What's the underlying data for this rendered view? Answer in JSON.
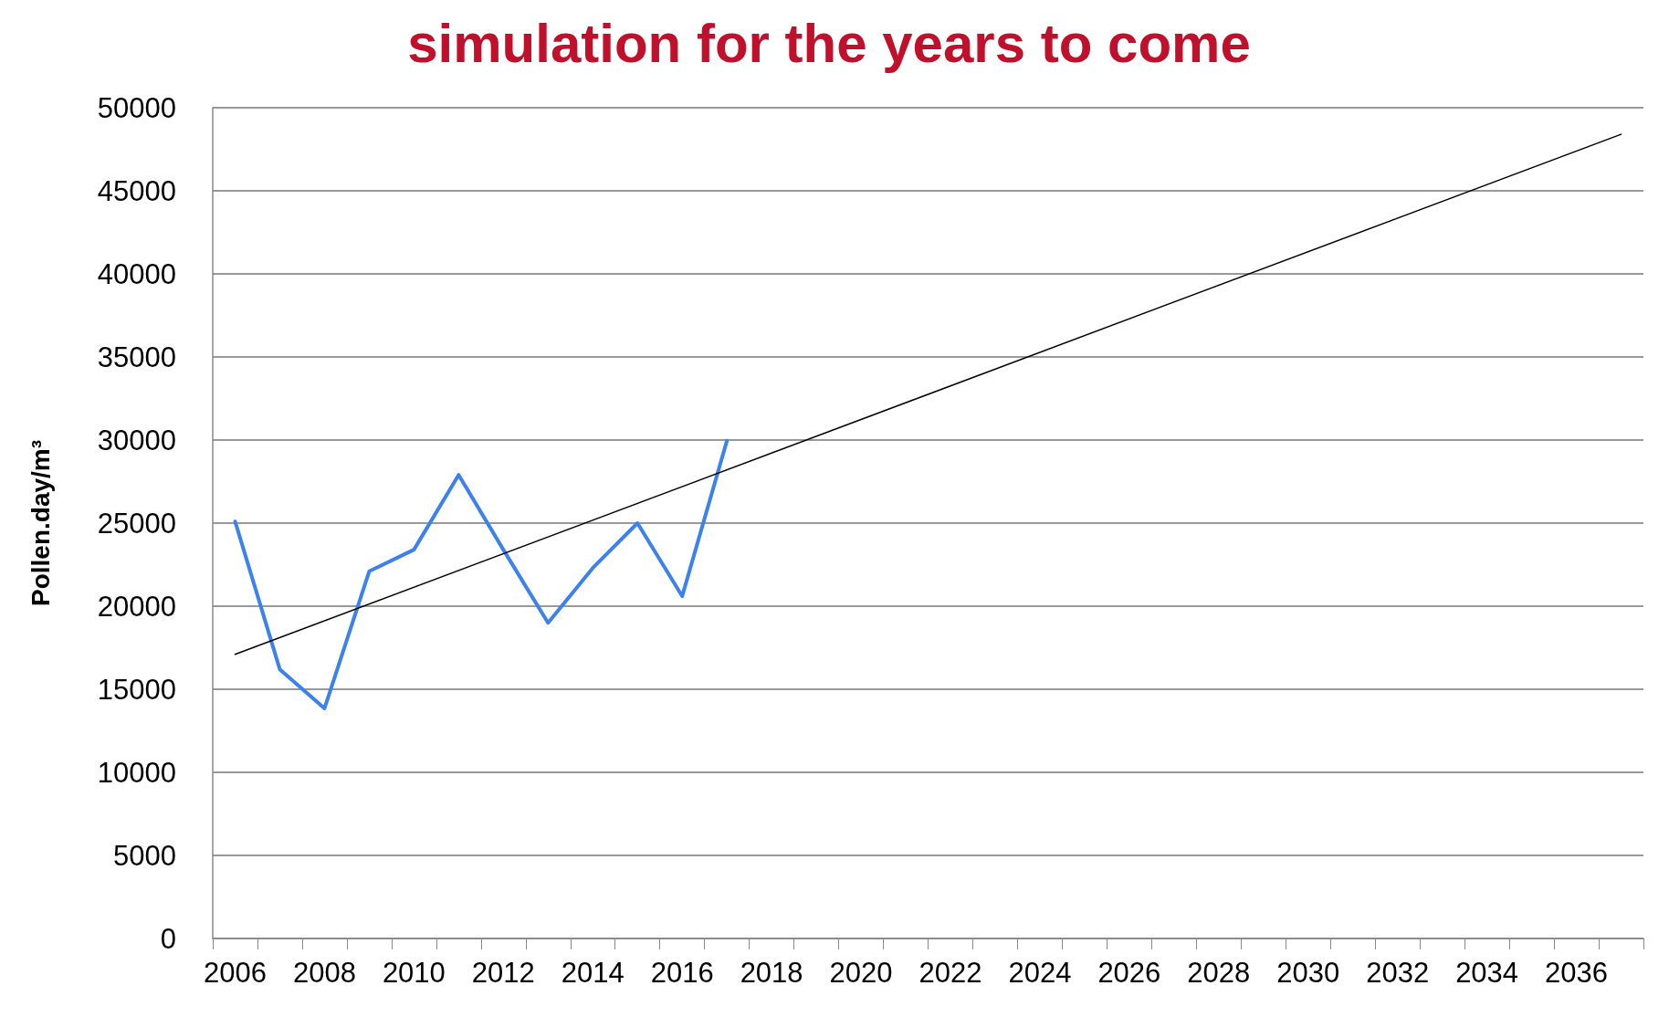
{
  "chart_data": {
    "type": "line",
    "title": "simulation for the years to come",
    "ylabel": "Pollen.day/m³",
    "categories": [
      "2006",
      null,
      "2008",
      null,
      "2010",
      null,
      "2012",
      null,
      "2014",
      null,
      "2016",
      null,
      "2018",
      null,
      "2020",
      null,
      "2022",
      null,
      "2024",
      null,
      "2026",
      null,
      "2028",
      null,
      "2030",
      null,
      "2032",
      null,
      "2034",
      null,
      "2036",
      null
    ],
    "series": [
      {
        "color": "#3b82ee",
        "values": [
          25100,
          16200,
          13850,
          22100,
          23400,
          27900,
          23400,
          19000,
          22300,
          25000,
          20600,
          29950,
          null,
          null,
          null,
          null,
          null,
          null,
          null,
          null,
          null,
          null,
          null,
          null,
          null,
          null,
          null,
          null,
          null,
          null,
          null,
          null
        ]
      },
      {
        "color": "#000000",
        "values": [
          17100,
          null,
          null,
          null,
          null,
          null,
          null,
          null,
          null,
          null,
          null,
          null,
          null,
          null,
          null,
          null,
          null,
          null,
          null,
          null,
          null,
          null,
          null,
          null,
          null,
          null,
          null,
          null,
          null,
          null,
          null,
          48400
        ]
      }
    ],
    "ylim": [
      0,
      50000
    ],
    "yticks": [
      0,
      5000,
      10000,
      15000,
      20000,
      25000,
      30000,
      35000,
      40000,
      45000,
      50000
    ],
    "grid": "y",
    "marker": "none",
    "line_style": "solid"
  }
}
